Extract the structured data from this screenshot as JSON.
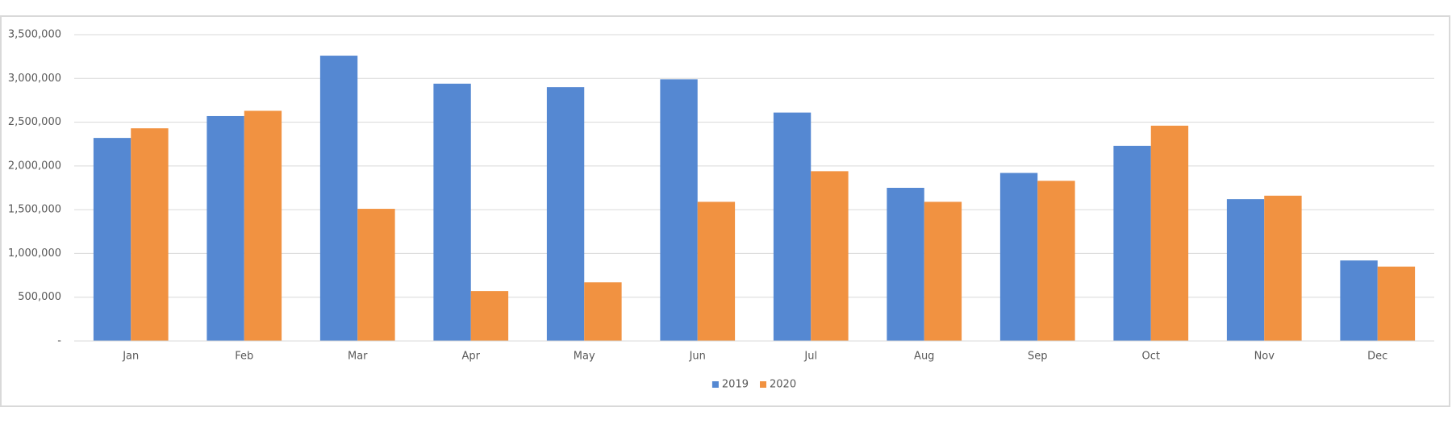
{
  "chart_data": {
    "type": "bar",
    "categories": [
      "Jan",
      "Feb",
      "Mar",
      "Apr",
      "May",
      "Jun",
      "Jul",
      "Aug",
      "Sep",
      "Oct",
      "Nov",
      "Dec"
    ],
    "series": [
      {
        "name": "2019",
        "color": "#5588d2",
        "values": [
          2320000,
          2570000,
          3260000,
          2940000,
          2900000,
          2990000,
          2610000,
          1750000,
          1920000,
          2230000,
          1620000,
          920000
        ]
      },
      {
        "name": "2020",
        "color": "#f19241",
        "values": [
          2430000,
          2630000,
          1510000,
          570000,
          670000,
          1590000,
          1940000,
          1590000,
          1830000,
          2460000,
          1660000,
          850000
        ]
      }
    ],
    "ylim": [
      0,
      3500000
    ],
    "yticks": [
      {
        "value": 0,
        "label": "-"
      },
      {
        "value": 500000,
        "label": "500,000"
      },
      {
        "value": 1000000,
        "label": "1,000,000"
      },
      {
        "value": 1500000,
        "label": "1,500,000"
      },
      {
        "value": 2000000,
        "label": "2,000,000"
      },
      {
        "value": 2500000,
        "label": "2,500,000"
      },
      {
        "value": 3000000,
        "label": "3,000,000"
      },
      {
        "value": 3500000,
        "label": "3,500,000"
      }
    ],
    "grid": true,
    "legend": "bottom"
  }
}
